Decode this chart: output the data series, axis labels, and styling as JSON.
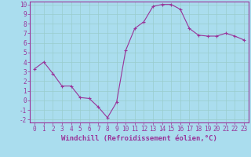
{
  "x": [
    0,
    1,
    2,
    3,
    4,
    5,
    6,
    7,
    8,
    9,
    10,
    11,
    12,
    13,
    14,
    15,
    16,
    17,
    18,
    19,
    20,
    21,
    22,
    23
  ],
  "y": [
    3.3,
    4.0,
    2.8,
    1.5,
    1.5,
    0.3,
    0.2,
    -0.7,
    -1.8,
    -0.2,
    5.2,
    7.5,
    8.2,
    9.8,
    10.0,
    10.0,
    9.5,
    7.5,
    6.8,
    6.7,
    6.7,
    7.0,
    6.7,
    6.3
  ],
  "line_color": "#993399",
  "marker_color": "#993399",
  "bg_color": "#aaddee",
  "grid_color": "#99cccc",
  "xlabel": "Windchill (Refroidissement éolien,°C)",
  "xlabel_color": "#993399",
  "tick_color": "#993399",
  "spine_color": "#993399",
  "ylim": [
    -2,
    10
  ],
  "xlim": [
    -0.5,
    23.5
  ],
  "yticks": [
    -2,
    -1,
    0,
    1,
    2,
    3,
    4,
    5,
    6,
    7,
    8,
    9,
    10
  ],
  "xticks": [
    0,
    1,
    2,
    3,
    4,
    5,
    6,
    7,
    8,
    9,
    10,
    11,
    12,
    13,
    14,
    15,
    16,
    17,
    18,
    19,
    20,
    21,
    22,
    23
  ],
  "tick_fontsize": 5.5,
  "xlabel_fontsize": 6.5
}
